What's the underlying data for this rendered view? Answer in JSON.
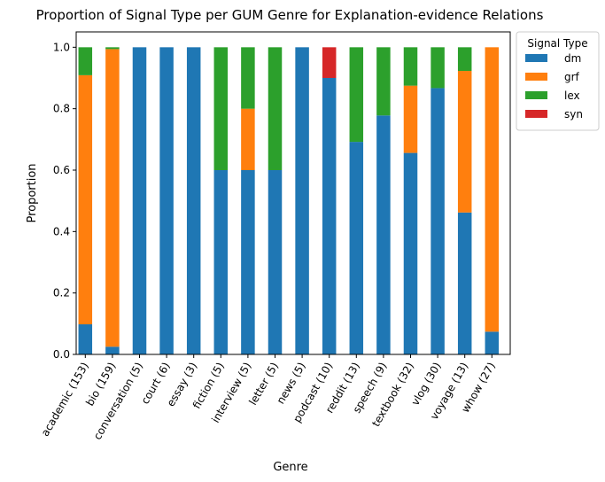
{
  "chart_data": {
    "type": "bar",
    "stacked": true,
    "title": "Proportion of Signal Type per GUM Genre for Explanation-evidence Relations",
    "xlabel": "Genre",
    "ylabel": "Proportion",
    "ylim": [
      0,
      1.05
    ],
    "yticks": [
      "0.0",
      "0.2",
      "0.4",
      "0.6",
      "0.8",
      "1.0"
    ],
    "grid": false,
    "legend": {
      "title": "Signal Type",
      "position": "outside-top-right"
    },
    "categories": [
      "academic (153)",
      "bio (159)",
      "conversation (5)",
      "court (6)",
      "essay (3)",
      "fiction (5)",
      "interview (5)",
      "letter (5)",
      "news (5)",
      "podcast (10)",
      "reddit (13)",
      "speech (9)",
      "textbook (32)",
      "vlog (30)",
      "voyage (13)",
      "whow (27)"
    ],
    "series": [
      {
        "name": "dm",
        "color": "#1f77b4",
        "values": [
          0.098,
          0.025,
          1.0,
          1.0,
          1.0,
          0.6,
          0.6,
          0.6,
          1.0,
          0.9,
          0.692,
          0.778,
          0.656,
          0.867,
          0.462,
          0.074
        ]
      },
      {
        "name": "grf",
        "color": "#ff7f0e",
        "values": [
          0.811,
          0.969,
          0.0,
          0.0,
          0.0,
          0.0,
          0.2,
          0.0,
          0.0,
          0.0,
          0.0,
          0.0,
          0.219,
          0.0,
          0.461,
          0.926
        ]
      },
      {
        "name": "lex",
        "color": "#2ca02c",
        "values": [
          0.091,
          0.006,
          0.0,
          0.0,
          0.0,
          0.4,
          0.2,
          0.4,
          0.0,
          0.0,
          0.308,
          0.222,
          0.125,
          0.133,
          0.077,
          0.0
        ]
      },
      {
        "name": "syn",
        "color": "#d62728",
        "values": [
          0.0,
          0.0,
          0.0,
          0.0,
          0.0,
          0.0,
          0.0,
          0.0,
          0.0,
          0.1,
          0.0,
          0.0,
          0.0,
          0.0,
          0.0,
          0.0
        ]
      }
    ]
  }
}
